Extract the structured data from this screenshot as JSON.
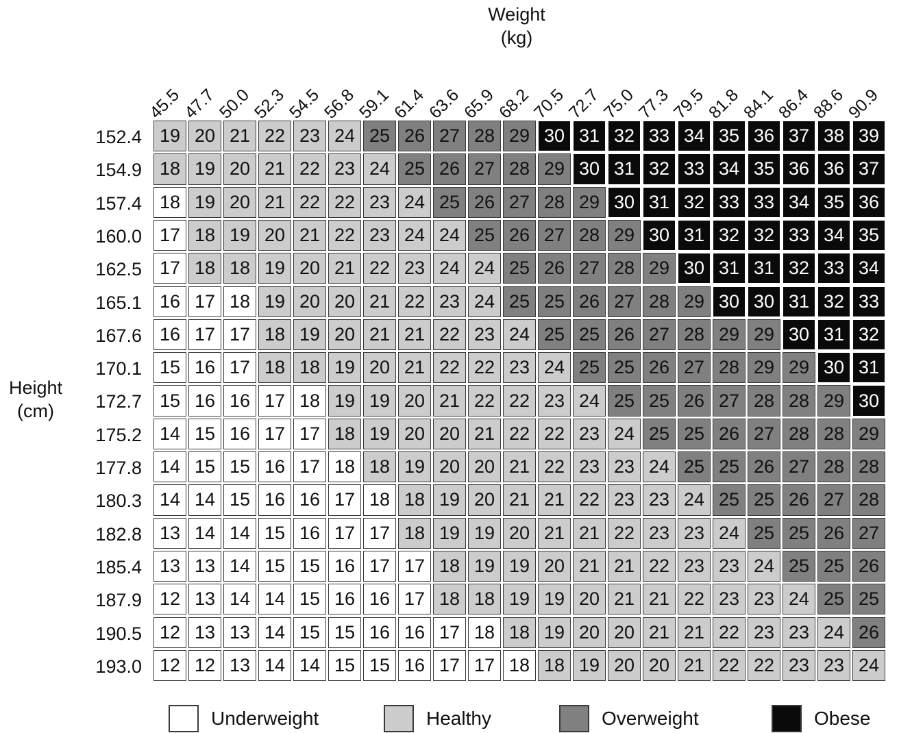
{
  "chart_data": {
    "type": "heatmap",
    "x_title": "Weight\n(kg)",
    "y_title": "Height\n(cm)",
    "weights": [
      "45.5",
      "47.7",
      "50.0",
      "52.3",
      "54.5",
      "56.8",
      "59.1",
      "61.4",
      "63.6",
      "65.9",
      "68.2",
      "70.5",
      "72.7",
      "75.0",
      "77.3",
      "79.5",
      "81.8",
      "84.1",
      "86.4",
      "88.6",
      "90.9"
    ],
    "heights": [
      "152.4",
      "154.9",
      "157.4",
      "160.0",
      "162.5",
      "165.1",
      "167.6",
      "170.1",
      "172.7",
      "175.2",
      "177.8",
      "180.3",
      "182.8",
      "185.4",
      "187.9",
      "190.5",
      "193.0"
    ],
    "bmi": [
      [
        19,
        20,
        21,
        22,
        23,
        24,
        25,
        26,
        27,
        28,
        29,
        30,
        31,
        32,
        33,
        34,
        35,
        36,
        37,
        38,
        39
      ],
      [
        18,
        19,
        20,
        21,
        22,
        23,
        24,
        25,
        26,
        27,
        28,
        29,
        30,
        31,
        32,
        33,
        34,
        35,
        36,
        36,
        37
      ],
      [
        18,
        19,
        20,
        21,
        22,
        22,
        23,
        24,
        25,
        26,
        27,
        28,
        29,
        30,
        31,
        32,
        33,
        33,
        34,
        35,
        36
      ],
      [
        17,
        18,
        19,
        20,
        21,
        22,
        23,
        24,
        24,
        25,
        26,
        27,
        28,
        29,
        30,
        31,
        32,
        32,
        33,
        34,
        35
      ],
      [
        17,
        18,
        18,
        19,
        20,
        21,
        22,
        23,
        24,
        24,
        25,
        26,
        27,
        28,
        29,
        30,
        31,
        31,
        32,
        33,
        34
      ],
      [
        16,
        17,
        18,
        19,
        20,
        20,
        21,
        22,
        23,
        24,
        25,
        25,
        26,
        27,
        28,
        29,
        30,
        30,
        31,
        32,
        33
      ],
      [
        16,
        17,
        17,
        18,
        19,
        20,
        21,
        21,
        22,
        23,
        24,
        25,
        25,
        26,
        27,
        28,
        29,
        29,
        30,
        31,
        32
      ],
      [
        15,
        16,
        17,
        18,
        18,
        19,
        20,
        21,
        22,
        22,
        23,
        24,
        25,
        25,
        26,
        27,
        28,
        29,
        29,
        30,
        31
      ],
      [
        15,
        16,
        16,
        17,
        18,
        19,
        19,
        20,
        21,
        22,
        22,
        23,
        24,
        25,
        25,
        26,
        27,
        28,
        28,
        29,
        30
      ],
      [
        14,
        15,
        16,
        17,
        17,
        18,
        19,
        20,
        20,
        21,
        22,
        22,
        23,
        24,
        25,
        25,
        26,
        27,
        28,
        28,
        29
      ],
      [
        14,
        15,
        15,
        16,
        17,
        18,
        18,
        19,
        20,
        20,
        21,
        22,
        23,
        23,
        24,
        25,
        25,
        26,
        27,
        28,
        28
      ],
      [
        14,
        14,
        15,
        16,
        16,
        17,
        18,
        18,
        19,
        20,
        21,
        21,
        22,
        23,
        23,
        24,
        25,
        25,
        26,
        27,
        28
      ],
      [
        13,
        14,
        14,
        15,
        16,
        17,
        17,
        18,
        19,
        19,
        20,
        21,
        21,
        22,
        23,
        23,
        24,
        25,
        25,
        26,
        27
      ],
      [
        13,
        13,
        14,
        15,
        15,
        16,
        17,
        17,
        18,
        19,
        19,
        20,
        21,
        21,
        22,
        23,
        23,
        24,
        25,
        25,
        26
      ],
      [
        12,
        13,
        14,
        14,
        15,
        16,
        16,
        17,
        18,
        18,
        19,
        19,
        20,
        21,
        21,
        22,
        23,
        23,
        24,
        25,
        25
      ],
      [
        12,
        13,
        13,
        14,
        15,
        15,
        16,
        16,
        17,
        18,
        18,
        19,
        20,
        20,
        21,
        21,
        22,
        23,
        23,
        24,
        26
      ],
      [
        12,
        12,
        13,
        14,
        14,
        15,
        15,
        16,
        17,
        17,
        18,
        18,
        19,
        20,
        20,
        21,
        22,
        22,
        23,
        23,
        24
      ]
    ],
    "categories": [
      {
        "name": "Underweight",
        "min": 0,
        "max": 17.99,
        "color": "#ffffff",
        "text_color": "#111111"
      },
      {
        "name": "Healthy",
        "min": 18,
        "max": 24.99,
        "color": "#cccccc",
        "text_color": "#111111"
      },
      {
        "name": "Overweight",
        "min": 25,
        "max": 29.99,
        "color": "#808080",
        "text_color": "#111111"
      },
      {
        "name": "Obese",
        "min": 30,
        "max": 99,
        "color": "#0a0a0a",
        "text_color": "#ffffff"
      }
    ],
    "overrides": [
      {
        "row": 0,
        "col": 0,
        "category": "Healthy"
      },
      {
        "row": 0,
        "col": 1,
        "category": "Healthy"
      },
      {
        "row": 1,
        "col": 6,
        "category": "Healthy"
      },
      {
        "row": 1,
        "col": 7,
        "category": "Overweight"
      },
      {
        "row": 2,
        "col": 0,
        "category": "Underweight"
      },
      {
        "row": 3,
        "col": 1,
        "category": "Healthy"
      },
      {
        "row": 5,
        "col": 2,
        "category": "Underweight"
      },
      {
        "row": 8,
        "col": 4,
        "category": "Underweight"
      },
      {
        "row": 9,
        "col": 4,
        "category": "Underweight"
      },
      {
        "row": 10,
        "col": 5,
        "category": "Underweight"
      },
      {
        "row": 11,
        "col": 6,
        "category": "Underweight"
      },
      {
        "row": 15,
        "col": 9,
        "category": "Underweight"
      },
      {
        "row": 16,
        "col": 10,
        "category": "Underweight"
      },
      {
        "row": 16,
        "col": 11,
        "category": "Healthy"
      },
      {
        "row": 6,
        "col": 15,
        "category": "Overweight"
      },
      {
        "row": 14,
        "col": 19,
        "category": "Overweight"
      },
      {
        "row": 15,
        "col": 20,
        "category": "Overweight"
      },
      {
        "row": 1,
        "col": 19,
        "category": "Obese"
      },
      {
        "row": 2,
        "col": 18,
        "category": "Obese"
      }
    ]
  },
  "legend": [
    {
      "label": "Underweight",
      "color": "#ffffff"
    },
    {
      "label": "Healthy",
      "color": "#cccccc"
    },
    {
      "label": "Overweight",
      "color": "#808080"
    },
    {
      "label": "Obese",
      "color": "#0a0a0a"
    }
  ]
}
